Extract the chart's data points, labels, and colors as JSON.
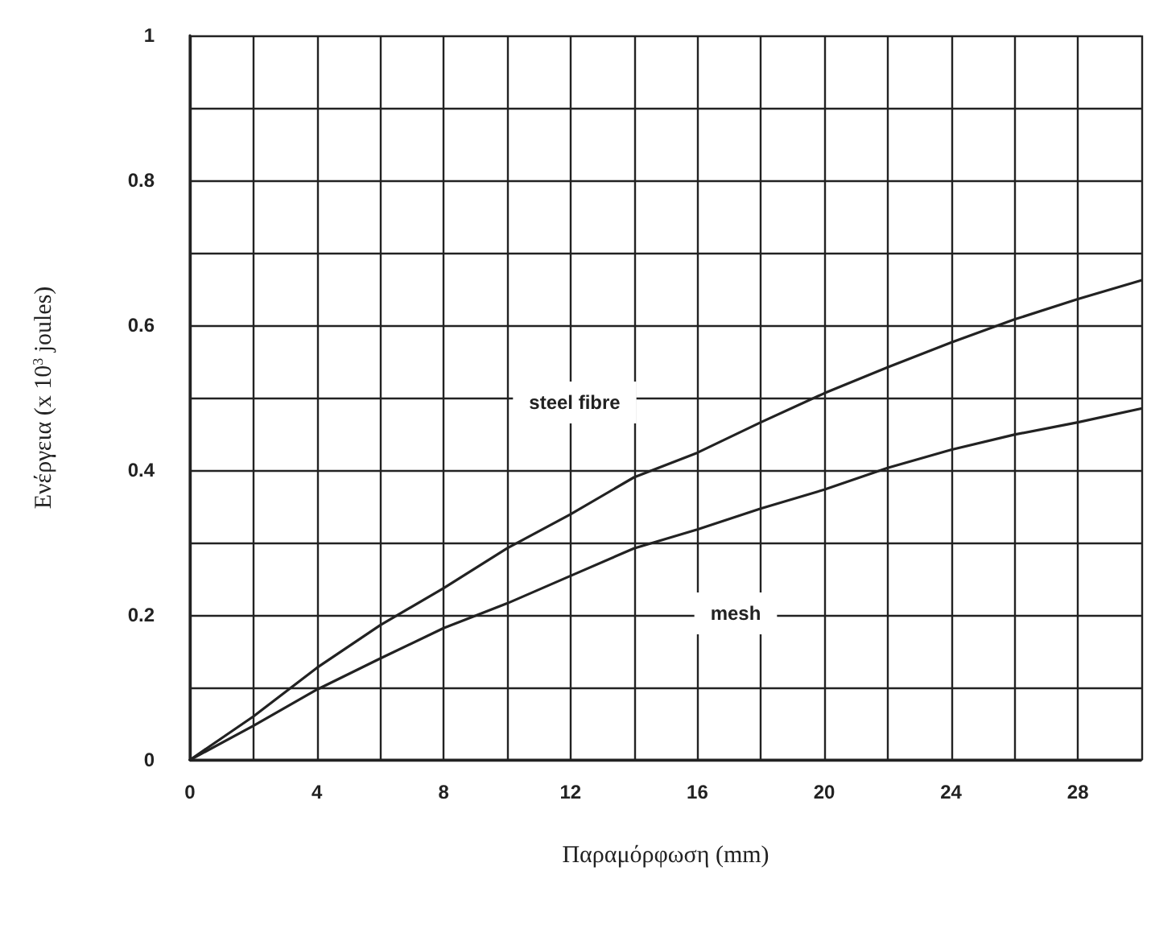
{
  "chart_data": {
    "type": "line",
    "xlabel": "Παραμόρφωση (mm)",
    "ylabel": "Ενέργεια (x 10$^{3}$ joules)",
    "xlim": [
      0,
      30
    ],
    "ylim": [
      0,
      1
    ],
    "xticks": [
      0,
      {
        "value": 2,
        "label": null
      },
      4,
      {
        "value": 6,
        "label": null
      },
      8,
      {
        "value": 10,
        "label": null
      },
      12,
      {
        "value": 14,
        "label": null
      },
      16,
      {
        "value": 18,
        "label": null
      },
      20,
      {
        "value": 22,
        "label": null
      },
      24,
      {
        "value": 26,
        "label": null
      },
      28,
      {
        "value": 30,
        "label": null
      }
    ],
    "yticks": [
      0,
      {
        "value": 0.1,
        "label": null
      },
      0.2,
      {
        "value": 0.3,
        "label": null
      },
      0.4,
      {
        "value": 0.5,
        "label": null
      },
      0.6,
      {
        "value": 0.7,
        "label": null
      },
      0.8,
      {
        "value": 0.9,
        "label": null
      },
      1
    ],
    "grid": true,
    "marker": "none",
    "line_style": "solid",
    "x": [
      0,
      2,
      4,
      6,
      8,
      10,
      12,
      14,
      16,
      18,
      20,
      22,
      24,
      26,
      28,
      30
    ],
    "series": [
      {
        "color": "#222222",
        "values": [
          0,
          0.06,
          0.127,
          0.186,
          0.237,
          0.292,
          0.339,
          0.39,
          0.424,
          0.466,
          0.506,
          0.542,
          0.576,
          0.608,
          0.636,
          0.662
        ]
      },
      {
        "color": "#222222",
        "values": [
          0,
          0.047,
          0.097,
          0.14,
          0.182,
          0.216,
          0.254,
          0.292,
          0.318,
          0.347,
          0.373,
          0.403,
          0.428,
          0.449,
          0.466,
          0.485
        ]
      }
    ],
    "annotations": [
      "steel fibre",
      "mesh"
    ]
  }
}
